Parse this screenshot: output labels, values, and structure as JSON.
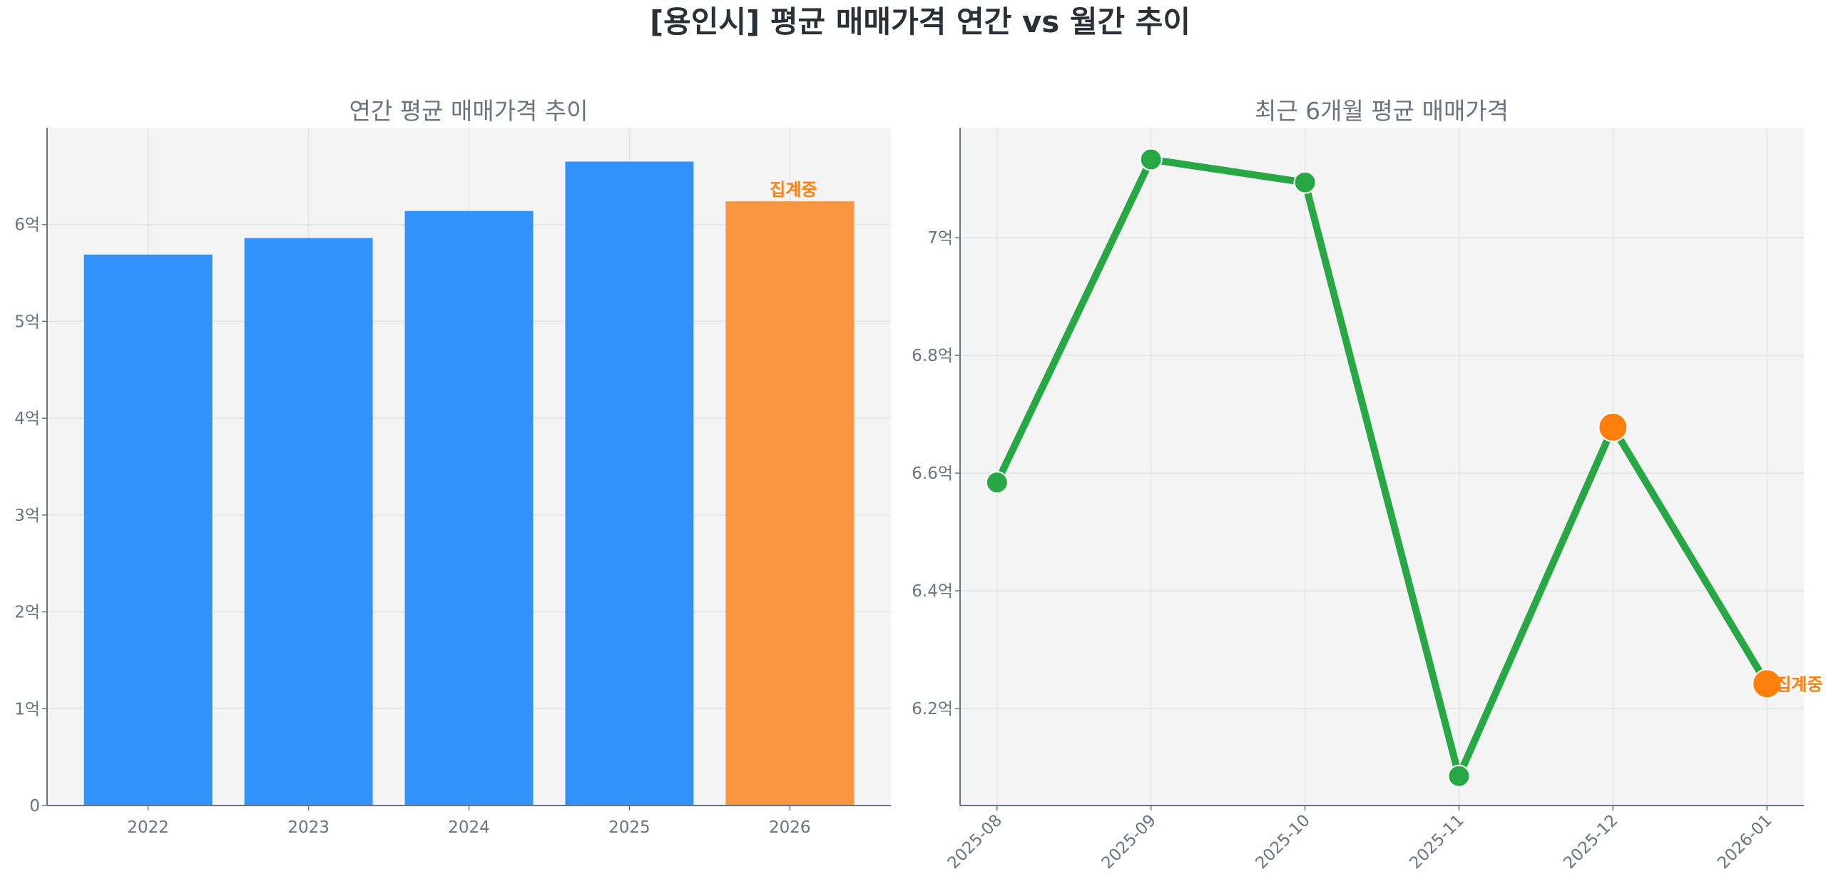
{
  "title": "[용인시] 평균 매매가격 연간 vs 월간 추이",
  "colors": {
    "bar": "#3092fa",
    "bar_pending": "#f9963f",
    "line": "#28a745",
    "marker_pending": "#ff7f0e",
    "axes_bg": "#f4f4f4",
    "grid": "#e3e3e3",
    "text": "#6b7280"
  },
  "chart_data": [
    {
      "type": "bar",
      "title": "연간 평균 매매가격 추이",
      "categories": [
        "2022",
        "2023",
        "2024",
        "2025",
        "2026"
      ],
      "values": [
        5.69,
        5.86,
        6.14,
        6.65,
        6.24
      ],
      "pending": [
        false,
        false,
        false,
        false,
        true
      ],
      "pending_label": "집계중",
      "unit": "억",
      "ylim": [
        0,
        7.0
      ],
      "yticks": [
        0,
        1,
        2,
        3,
        4,
        5,
        6
      ],
      "ytick_labels": [
        "0",
        "1억",
        "2억",
        "3억",
        "4억",
        "5억",
        "6억"
      ],
      "grid": true
    },
    {
      "type": "line",
      "title": "최근 6개월 평균 매매가격",
      "categories": [
        "2025-08",
        "2025-09",
        "2025-10",
        "2025-11",
        "2025-12",
        "2026-01"
      ],
      "values": [
        6.584,
        7.133,
        7.094,
        6.085,
        6.678,
        6.242
      ],
      "pending": [
        false,
        false,
        false,
        false,
        true,
        true
      ],
      "pending_label": "집계중",
      "unit": "억",
      "ylim": [
        6.035,
        7.187
      ],
      "yticks": [
        6.2,
        6.4,
        6.6,
        6.8,
        7.0
      ],
      "ytick_labels": [
        "6.2억",
        "6.4억",
        "6.6억",
        "6.8억",
        "7억"
      ],
      "grid": true
    }
  ]
}
